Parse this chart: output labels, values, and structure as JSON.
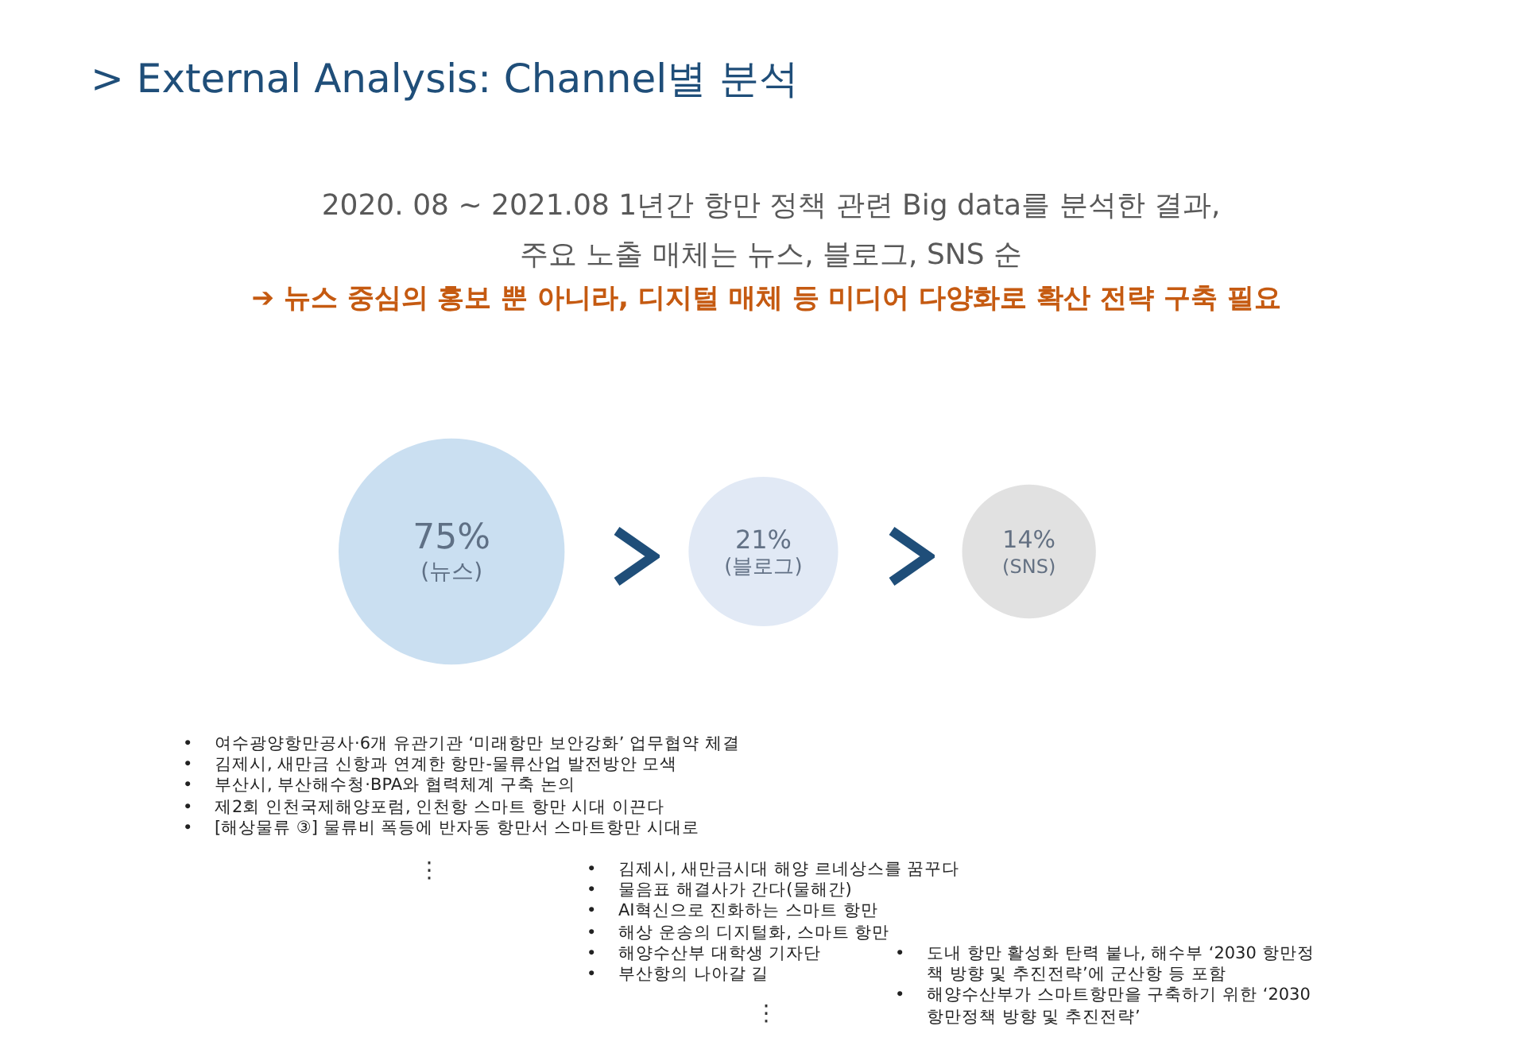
{
  "chart_data": {
    "type": "other",
    "title": "> External Analysis: Channel별 분석",
    "subtitle": "2020. 08 ~ 2021.08 1년간 항만 정책 관련 Big data를 분석한 결과,\n주요 노출 매체는 뉴스, 블로그, SNS 순",
    "categories": [
      "(뉴스)",
      "(블로그)",
      "(SNS)"
    ],
    "values": [
      75,
      21,
      14
    ],
    "value_labels": [
      "75%",
      "21%",
      "14%"
    ],
    "colors": [
      "#bdd7ee",
      "#dae3f3",
      "#d9d9d9"
    ],
    "annotations": [
      "➔ 뉴스 중심의 홍보 뿐 아니라, 디지털 매체 등 미디어 다양화로 확산 전략 구축 필요",
      "• 여수광양항만공사·6개 유관기관 ‘미래항만 보안강화’ 업무협약 체결\n• 김제시, 새만금 신항과 연계한 항만-물류산업 발전방안 모색\n• 부산시, 부산해수청·BPA와 협력체계 구축 논의\n• 제2회 인천국제해양포럼, 인천항 스마트 항만 시대 이끈다\n• [해상물류 ③] 물류비 폭등에 반자동 항만서 스마트항만 시대로",
      "⋮",
      "• 김제시, 새만금시대 해양 르네상스를 꿈꾸다\n• 물음표 해결사가 간다(물해간)\n• AI혁신으로 진화하는 스마트 항만\n• 해상 운송의 디지털화, 스마트 항만\n• 해양수산부 대학생 기자단\n• 부산항의 나아갈 길",
      "⋮",
      "• 도내 항만 활성화 탄력 붙나, 해수부 ‘2030 항만정책 방향 및 추진전략’에 군산항 등 포함\n• 해양수산부가 스마트항만을 구축하기 위한 ‘2030 항만정책 방향 및 추진전략’"
    ]
  }
}
